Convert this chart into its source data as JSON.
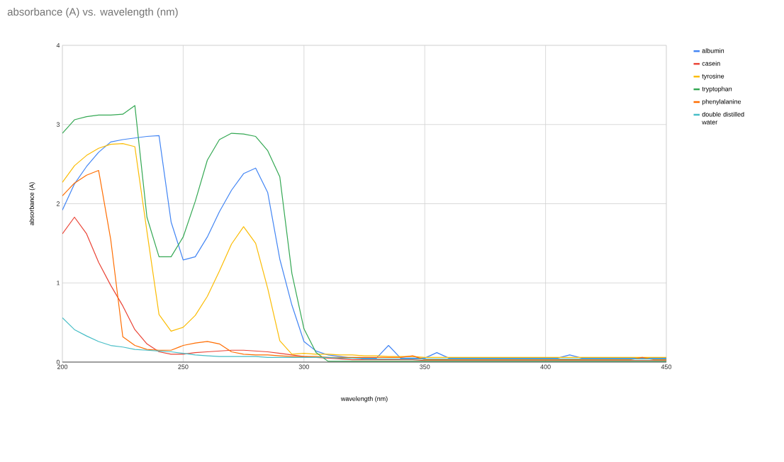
{
  "chart_data": {
    "type": "line",
    "title": "absorbance (A) vs. wavelength (nm)",
    "xlabel": "wavelength (nm)",
    "ylabel": "absorbance (A)",
    "x": [
      200,
      205,
      210,
      215,
      220,
      225,
      230,
      235,
      240,
      245,
      250,
      255,
      260,
      265,
      270,
      275,
      280,
      285,
      290,
      295,
      300,
      305,
      310,
      315,
      320,
      325,
      330,
      335,
      340,
      345,
      350,
      355,
      360,
      365,
      370,
      375,
      380,
      385,
      390,
      395,
      400,
      405,
      410,
      415,
      420,
      425,
      430,
      435,
      440,
      445,
      450
    ],
    "xlim": [
      200,
      450
    ],
    "xticks": [
      200,
      250,
      300,
      350,
      400,
      450
    ],
    "ylim": [
      0,
      4
    ],
    "yticks": [
      0,
      1,
      2,
      3,
      4
    ],
    "grid": true,
    "legend": "right",
    "marker": "none",
    "line_style": "solid",
    "series": [
      {
        "name": "albumin",
        "color": "#4285f4",
        "values": [
          1.92,
          2.25,
          2.47,
          2.65,
          2.78,
          2.81,
          2.83,
          2.85,
          2.86,
          1.77,
          1.29,
          1.33,
          1.58,
          1.9,
          2.17,
          2.38,
          2.45,
          2.14,
          1.3,
          0.72,
          0.26,
          0.14,
          0.09,
          0.07,
          0.05,
          0.05,
          0.05,
          0.21,
          0.05,
          0.05,
          0.05,
          0.12,
          0.05,
          0.05,
          0.05,
          0.05,
          0.05,
          0.05,
          0.05,
          0.05,
          0.05,
          0.05,
          0.09,
          0.05,
          0.05,
          0.05,
          0.05,
          0.05,
          0.05,
          0.05,
          0.05
        ]
      },
      {
        "name": "casein",
        "color": "#ea4335",
        "values": [
          1.62,
          1.83,
          1.62,
          1.26,
          0.97,
          0.71,
          0.41,
          0.23,
          0.13,
          0.1,
          0.1,
          0.12,
          0.13,
          0.14,
          0.15,
          0.15,
          0.14,
          0.13,
          0.11,
          0.09,
          0.07,
          0.06,
          0.05,
          0.04,
          0.03,
          0.03,
          0.03,
          0.03,
          0.03,
          0.03,
          0.02,
          0.02,
          0.02,
          0.02,
          0.02,
          0.02,
          0.02,
          0.02,
          0.02,
          0.02,
          0.02,
          0.02,
          0.02,
          0.02,
          0.02,
          0.02,
          0.02,
          0.02,
          0.02,
          0.02,
          0.02
        ]
      },
      {
        "name": "tyrosine",
        "color": "#fbbc04",
        "values": [
          2.27,
          2.48,
          2.61,
          2.7,
          2.75,
          2.76,
          2.72,
          1.65,
          0.6,
          0.39,
          0.44,
          0.59,
          0.83,
          1.15,
          1.49,
          1.71,
          1.5,
          0.93,
          0.27,
          0.1,
          0.11,
          0.1,
          0.1,
          0.09,
          0.09,
          0.08,
          0.08,
          0.07,
          0.07,
          0.07,
          0.06,
          0.06,
          0.06,
          0.06,
          0.06,
          0.06,
          0.06,
          0.06,
          0.06,
          0.06,
          0.06,
          0.06,
          0.06,
          0.06,
          0.06,
          0.06,
          0.06,
          0.06,
          0.06,
          0.06,
          0.06
        ]
      },
      {
        "name": "tryptophan",
        "color": "#34a853",
        "values": [
          2.89,
          3.06,
          3.1,
          3.12,
          3.12,
          3.13,
          3.24,
          1.83,
          1.33,
          1.33,
          1.58,
          2.03,
          2.55,
          2.81,
          2.89,
          2.88,
          2.85,
          2.67,
          2.34,
          1.12,
          0.42,
          0.12,
          0.01,
          0.01,
          0.01,
          0.01,
          0.01,
          0.01,
          0.01,
          0.01,
          0.01,
          0.01,
          0.01,
          0.01,
          0.01,
          0.01,
          0.01,
          0.01,
          0.01,
          0.01,
          0.01,
          0.01,
          0.01,
          0.01,
          0.01,
          0.01,
          0.01,
          0.01,
          0.01,
          0.01,
          0.01
        ]
      },
      {
        "name": "phenylalanine",
        "color": "#ff6d01",
        "values": [
          2.1,
          2.26,
          2.36,
          2.42,
          1.55,
          0.32,
          0.21,
          0.16,
          0.15,
          0.15,
          0.21,
          0.24,
          0.26,
          0.23,
          0.13,
          0.1,
          0.09,
          0.09,
          0.08,
          0.07,
          0.07,
          0.07,
          0.06,
          0.06,
          0.06,
          0.06,
          0.06,
          0.06,
          0.06,
          0.08,
          0.03,
          0.03,
          0.03,
          0.03,
          0.03,
          0.03,
          0.03,
          0.03,
          0.03,
          0.03,
          0.03,
          0.03,
          0.03,
          0.03,
          0.03,
          0.03,
          0.03,
          0.03,
          0.06,
          0.03,
          0.03
        ]
      },
      {
        "name": "double distilled water",
        "color": "#46bdc6",
        "values": [
          0.56,
          0.41,
          0.33,
          0.26,
          0.21,
          0.19,
          0.16,
          0.15,
          0.14,
          0.13,
          0.11,
          0.09,
          0.08,
          0.07,
          0.07,
          0.07,
          0.07,
          0.06,
          0.06,
          0.06,
          0.06,
          0.06,
          0.06,
          0.05,
          0.05,
          0.04,
          0.04,
          0.04,
          0.04,
          0.04,
          0.04,
          0.04,
          0.04,
          0.04,
          0.04,
          0.04,
          0.04,
          0.04,
          0.04,
          0.04,
          0.04,
          0.04,
          0.04,
          0.04,
          0.04,
          0.04,
          0.04,
          0.04,
          0.04,
          0.04,
          0.04
        ]
      }
    ]
  }
}
